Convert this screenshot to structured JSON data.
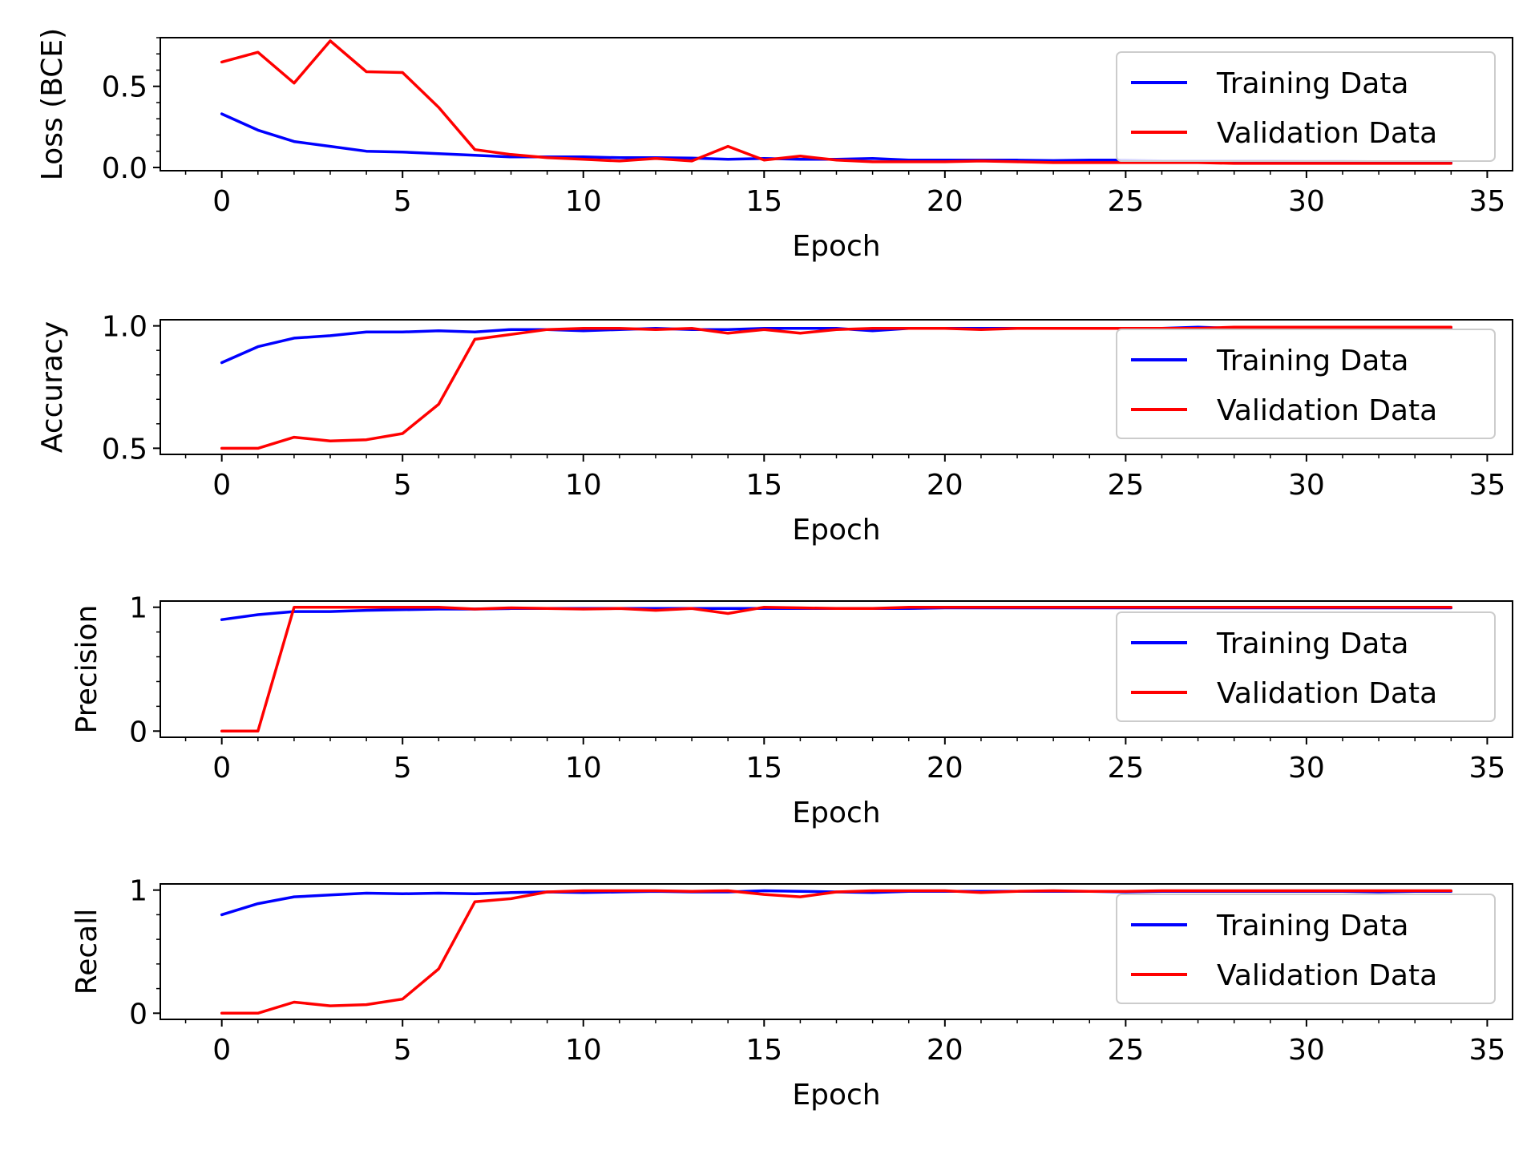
{
  "chart_data": [
    {
      "type": "line",
      "ylabel": "Loss (BCE)",
      "xlabel": "Epoch",
      "xlim": [
        -1.7,
        35.7
      ],
      "ylim": [
        -0.02,
        0.8
      ],
      "xticks": [
        0,
        5,
        10,
        15,
        20,
        25,
        30,
        35
      ],
      "yticks": [
        0.0,
        0.5
      ],
      "ytick_labels": [
        "0.0",
        "0.5"
      ],
      "legend_position": "upper-right",
      "series": [
        {
          "name": "Training Data",
          "color": "#0000ff",
          "x": [
            0,
            1,
            2,
            3,
            4,
            5,
            6,
            7,
            8,
            9,
            10,
            11,
            12,
            13,
            14,
            15,
            16,
            17,
            18,
            19,
            20,
            21,
            22,
            23,
            24,
            25,
            26,
            27,
            28,
            29,
            30,
            31,
            32,
            33,
            34
          ],
          "values": [
            0.33,
            0.23,
            0.16,
            0.13,
            0.1,
            0.095,
            0.085,
            0.075,
            0.065,
            0.065,
            0.065,
            0.06,
            0.06,
            0.058,
            0.05,
            0.055,
            0.05,
            0.05,
            0.055,
            0.045,
            0.045,
            0.045,
            0.045,
            0.042,
            0.045,
            0.045,
            0.04,
            0.04,
            0.04,
            0.04,
            0.038,
            0.038,
            0.035,
            0.035,
            0.035
          ]
        },
        {
          "name": "Validation Data",
          "color": "#ff0000",
          "x": [
            0,
            1,
            2,
            3,
            4,
            5,
            6,
            7,
            8,
            9,
            10,
            11,
            12,
            13,
            14,
            15,
            16,
            17,
            18,
            19,
            20,
            21,
            22,
            23,
            24,
            25,
            26,
            27,
            28,
            29,
            30,
            31,
            32,
            33,
            34
          ],
          "values": [
            0.65,
            0.71,
            0.52,
            0.78,
            0.59,
            0.585,
            0.37,
            0.11,
            0.08,
            0.06,
            0.05,
            0.04,
            0.055,
            0.04,
            0.13,
            0.045,
            0.07,
            0.045,
            0.035,
            0.035,
            0.035,
            0.04,
            0.035,
            0.03,
            0.03,
            0.03,
            0.03,
            0.03,
            0.025,
            0.025,
            0.025,
            0.025,
            0.025,
            0.025,
            0.025
          ]
        }
      ]
    },
    {
      "type": "line",
      "ylabel": "Accuracy",
      "xlabel": "Epoch",
      "xlim": [
        -1.7,
        35.7
      ],
      "ylim": [
        0.475,
        1.025
      ],
      "xticks": [
        0,
        5,
        10,
        15,
        20,
        25,
        30,
        35
      ],
      "yticks": [
        0.5,
        1.0
      ],
      "ytick_labels": [
        "0.5",
        "1.0"
      ],
      "legend_position": "lower-right",
      "series": [
        {
          "name": "Training Data",
          "color": "#0000ff",
          "x": [
            0,
            1,
            2,
            3,
            4,
            5,
            6,
            7,
            8,
            9,
            10,
            11,
            12,
            13,
            14,
            15,
            16,
            17,
            18,
            19,
            20,
            21,
            22,
            23,
            24,
            25,
            26,
            27,
            28,
            29,
            30,
            31,
            32,
            33,
            34
          ],
          "values": [
            0.85,
            0.915,
            0.95,
            0.96,
            0.975,
            0.975,
            0.98,
            0.975,
            0.985,
            0.985,
            0.98,
            0.985,
            0.99,
            0.985,
            0.985,
            0.99,
            0.99,
            0.99,
            0.98,
            0.99,
            0.99,
            0.99,
            0.99,
            0.99,
            0.99,
            0.99,
            0.99,
            0.995,
            0.99,
            0.99,
            0.99,
            0.99,
            0.99,
            0.99,
            0.99
          ]
        },
        {
          "name": "Validation Data",
          "color": "#ff0000",
          "x": [
            0,
            1,
            2,
            3,
            4,
            5,
            6,
            7,
            8,
            9,
            10,
            11,
            12,
            13,
            14,
            15,
            16,
            17,
            18,
            19,
            20,
            21,
            22,
            23,
            24,
            25,
            26,
            27,
            28,
            29,
            30,
            31,
            32,
            33,
            34
          ],
          "values": [
            0.5,
            0.5,
            0.545,
            0.53,
            0.535,
            0.56,
            0.68,
            0.945,
            0.965,
            0.985,
            0.99,
            0.99,
            0.985,
            0.99,
            0.97,
            0.985,
            0.97,
            0.985,
            0.99,
            0.99,
            0.99,
            0.985,
            0.99,
            0.99,
            0.99,
            0.99,
            0.99,
            0.99,
            0.995,
            0.995,
            0.995,
            0.995,
            0.995,
            0.995,
            0.995
          ]
        }
      ]
    },
    {
      "type": "line",
      "ylabel": "Precision",
      "xlabel": "Epoch",
      "xlim": [
        -1.7,
        35.7
      ],
      "ylim": [
        -0.05,
        1.05
      ],
      "xticks": [
        0,
        5,
        10,
        15,
        20,
        25,
        30,
        35
      ],
      "yticks": [
        0,
        1
      ],
      "ytick_labels": [
        "0",
        "1"
      ],
      "legend_position": "lower-right",
      "series": [
        {
          "name": "Training Data",
          "color": "#0000ff",
          "x": [
            0,
            1,
            2,
            3,
            4,
            5,
            6,
            7,
            8,
            9,
            10,
            11,
            12,
            13,
            14,
            15,
            16,
            17,
            18,
            19,
            20,
            21,
            22,
            23,
            24,
            25,
            26,
            27,
            28,
            29,
            30,
            31,
            32,
            33,
            34
          ],
          "values": [
            0.9,
            0.94,
            0.965,
            0.965,
            0.975,
            0.98,
            0.985,
            0.985,
            0.99,
            0.99,
            0.99,
            0.99,
            0.99,
            0.99,
            0.99,
            0.99,
            0.99,
            0.99,
            0.99,
            0.99,
            0.995,
            0.995,
            0.995,
            0.995,
            0.995,
            0.995,
            0.995,
            0.995,
            0.995,
            0.995,
            0.995,
            0.995,
            0.995,
            0.995,
            0.995
          ]
        },
        {
          "name": "Validation Data",
          "color": "#ff0000",
          "x": [
            0,
            1,
            2,
            3,
            4,
            5,
            6,
            7,
            8,
            9,
            10,
            11,
            12,
            13,
            14,
            15,
            16,
            17,
            18,
            19,
            20,
            21,
            22,
            23,
            24,
            25,
            26,
            27,
            28,
            29,
            30,
            31,
            32,
            33,
            34
          ],
          "values": [
            0.0,
            0.0,
            1.0,
            1.0,
            1.0,
            1.0,
            1.0,
            0.985,
            0.995,
            0.99,
            0.985,
            0.99,
            0.975,
            0.99,
            0.95,
            1.0,
            0.995,
            0.99,
            0.99,
            1.0,
            1.0,
            1.0,
            1.0,
            1.0,
            1.0,
            1.0,
            1.0,
            1.0,
            1.0,
            1.0,
            1.0,
            1.0,
            1.0,
            1.0,
            1.0
          ]
        }
      ]
    },
    {
      "type": "line",
      "ylabel": "Recall",
      "xlabel": "Epoch",
      "xlim": [
        -1.7,
        35.7
      ],
      "ylim": [
        -0.05,
        1.05
      ],
      "xticks": [
        0,
        5,
        10,
        15,
        20,
        25,
        30,
        35
      ],
      "yticks": [
        0,
        1
      ],
      "ytick_labels": [
        "0",
        "1"
      ],
      "legend_position": "lower-right",
      "series": [
        {
          "name": "Training Data",
          "color": "#0000ff",
          "x": [
            0,
            1,
            2,
            3,
            4,
            5,
            6,
            7,
            8,
            9,
            10,
            11,
            12,
            13,
            14,
            15,
            16,
            17,
            18,
            19,
            20,
            21,
            22,
            23,
            24,
            25,
            26,
            27,
            28,
            29,
            30,
            31,
            32,
            33,
            34
          ],
          "values": [
            0.8,
            0.89,
            0.945,
            0.96,
            0.975,
            0.97,
            0.975,
            0.97,
            0.98,
            0.985,
            0.98,
            0.985,
            0.99,
            0.985,
            0.985,
            0.995,
            0.99,
            0.985,
            0.98,
            0.99,
            0.99,
            0.99,
            0.99,
            0.99,
            0.99,
            0.985,
            0.99,
            0.99,
            0.99,
            0.99,
            0.99,
            0.99,
            0.985,
            0.99,
            0.99
          ]
        },
        {
          "name": "Validation Data",
          "color": "#ff0000",
          "x": [
            0,
            1,
            2,
            3,
            4,
            5,
            6,
            7,
            8,
            9,
            10,
            11,
            12,
            13,
            14,
            15,
            16,
            17,
            18,
            19,
            20,
            21,
            22,
            23,
            24,
            25,
            26,
            27,
            28,
            29,
            30,
            31,
            32,
            33,
            34
          ],
          "values": [
            0.0,
            0.0,
            0.09,
            0.06,
            0.07,
            0.115,
            0.36,
            0.905,
            0.93,
            0.985,
            0.995,
            0.995,
            0.995,
            0.99,
            0.995,
            0.965,
            0.945,
            0.985,
            0.995,
            0.995,
            0.995,
            0.98,
            0.99,
            0.995,
            0.99,
            0.99,
            0.995,
            0.995,
            0.995,
            0.995,
            0.995,
            0.995,
            0.995,
            0.995,
            0.995
          ]
        }
      ]
    }
  ]
}
